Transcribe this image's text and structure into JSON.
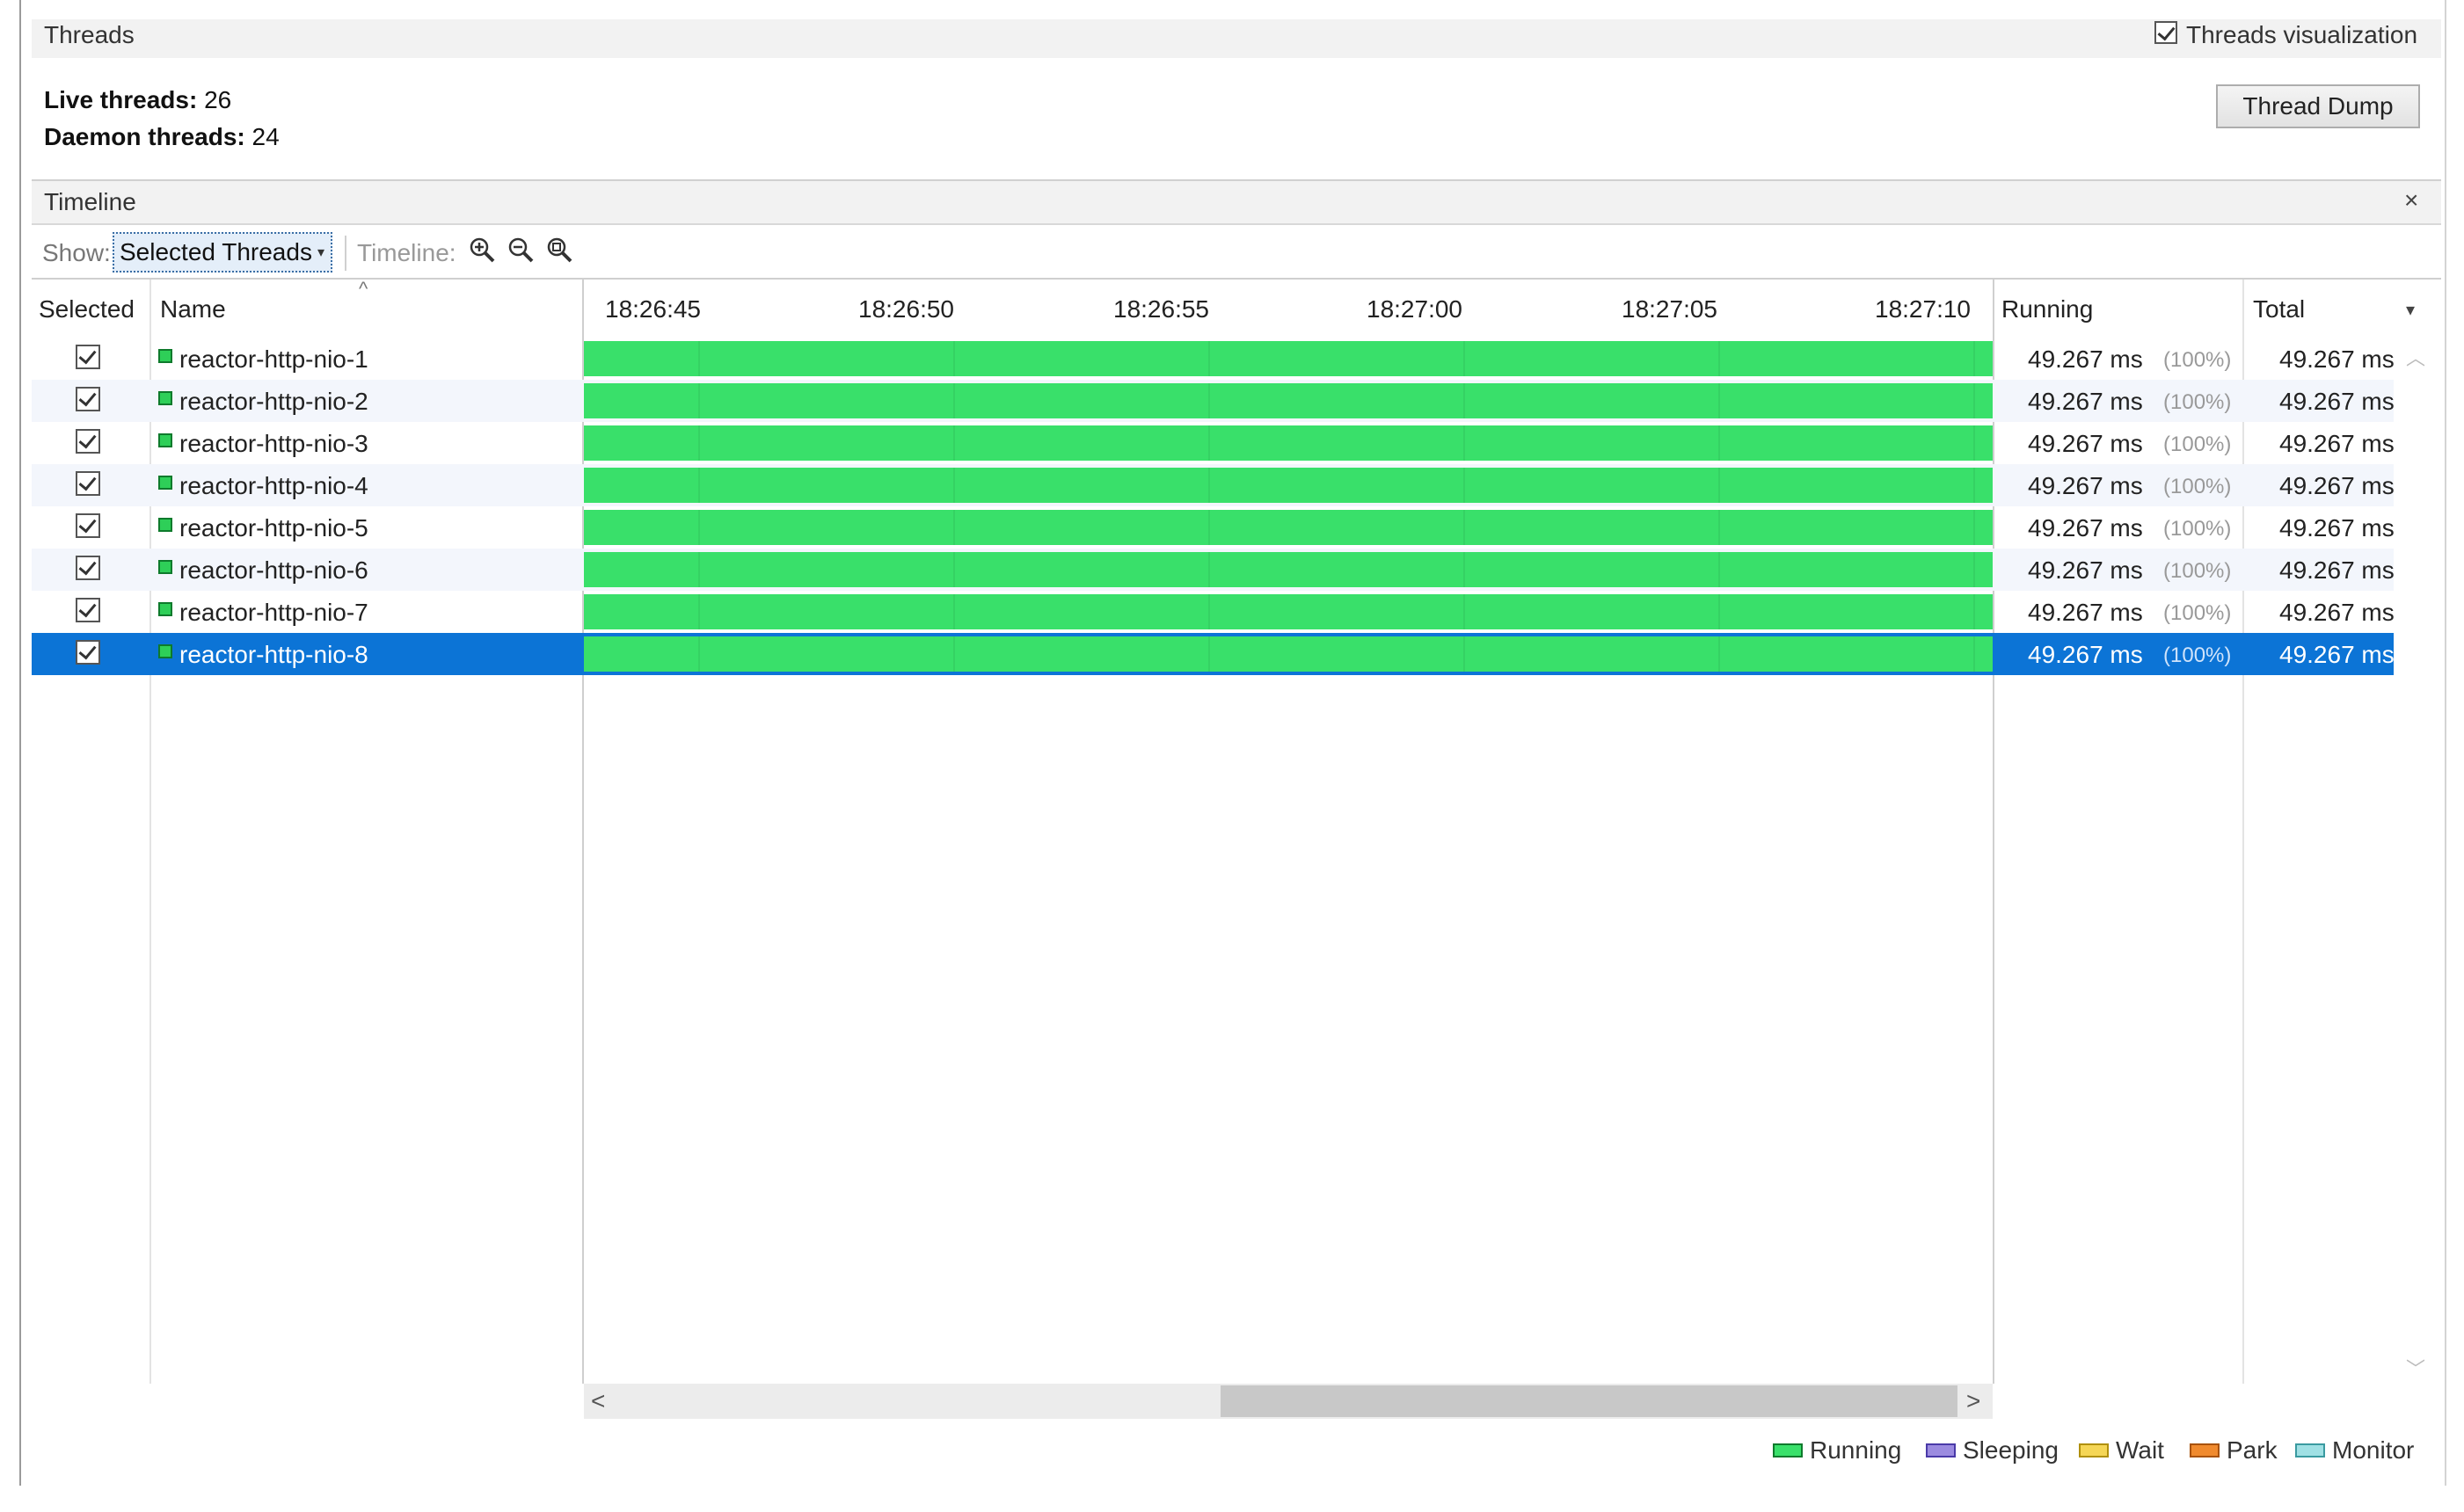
{
  "threads_panel": {
    "title": "Threads",
    "visualization_label": "Threads visualization",
    "visualization_checked": true,
    "live_threads_label": "Live threads:",
    "live_threads_value": "26",
    "daemon_threads_label": "Daemon threads:",
    "daemon_threads_value": "24",
    "thread_dump_button": "Thread Dump"
  },
  "timeline_panel": {
    "title": "Timeline",
    "close_glyph": "×",
    "show_label": "Show:",
    "show_selected": "Selected Threads",
    "timeline_label": "Timeline:",
    "zoom_icons": [
      "zoom-in-icon",
      "zoom-out-icon",
      "zoom-fit-icon"
    ]
  },
  "table": {
    "columns": {
      "selected": "Selected",
      "name": "Name",
      "running": "Running",
      "total": "Total"
    },
    "time_ticks": [
      "18:26:45",
      "18:26:50",
      "18:26:55",
      "18:27:00",
      "18:27:05",
      "18:27:10"
    ],
    "rows": [
      {
        "name": "reactor-http-nio-1",
        "running": "49.267 ms",
        "running_pct": "(100%)",
        "total": "49.267 ms",
        "checked": true,
        "state": "Running",
        "running_fraction": 1.0
      },
      {
        "name": "reactor-http-nio-2",
        "running": "49.267 ms",
        "running_pct": "(100%)",
        "total": "49.267 ms",
        "checked": true,
        "state": "Running",
        "running_fraction": 1.0
      },
      {
        "name": "reactor-http-nio-3",
        "running": "49.267 ms",
        "running_pct": "(100%)",
        "total": "49.267 ms",
        "checked": true,
        "state": "Running",
        "running_fraction": 1.0
      },
      {
        "name": "reactor-http-nio-4",
        "running": "49.267 ms",
        "running_pct": "(100%)",
        "total": "49.267 ms",
        "checked": true,
        "state": "Running",
        "running_fraction": 1.0
      },
      {
        "name": "reactor-http-nio-5",
        "running": "49.267 ms",
        "running_pct": "(100%)",
        "total": "49.267 ms",
        "checked": true,
        "state": "Running",
        "running_fraction": 1.0
      },
      {
        "name": "reactor-http-nio-6",
        "running": "49.267 ms",
        "running_pct": "(100%)",
        "total": "49.267 ms",
        "checked": true,
        "state": "Running",
        "running_fraction": 1.0
      },
      {
        "name": "reactor-http-nio-7",
        "running": "49.267 ms",
        "running_pct": "(100%)",
        "total": "49.267 ms",
        "checked": true,
        "state": "Running",
        "running_fraction": 1.0
      },
      {
        "name": "reactor-http-nio-8",
        "running": "49.267 ms",
        "running_pct": "(100%)",
        "total": "49.267 ms",
        "checked": true,
        "state": "Running",
        "running_fraction": 1.0,
        "selected": true
      }
    ]
  },
  "scroll": {
    "left_glyph": "<",
    "right_glyph": ">"
  },
  "legend": [
    {
      "label": "Running",
      "fill": "#39e06a",
      "stroke": "#0e7a2c"
    },
    {
      "label": "Sleeping",
      "fill": "#9b8be0",
      "stroke": "#4a3aa8"
    },
    {
      "label": "Wait",
      "fill": "#f5d656",
      "stroke": "#b0900c"
    },
    {
      "label": "Park",
      "fill": "#f08a2e",
      "stroke": "#a8520a"
    },
    {
      "label": "Monitor",
      "fill": "#9fe0e4",
      "stroke": "#3a9aa0"
    }
  ],
  "colors": {
    "running_bar": "#39e06a",
    "selection": "#0c74d6"
  }
}
